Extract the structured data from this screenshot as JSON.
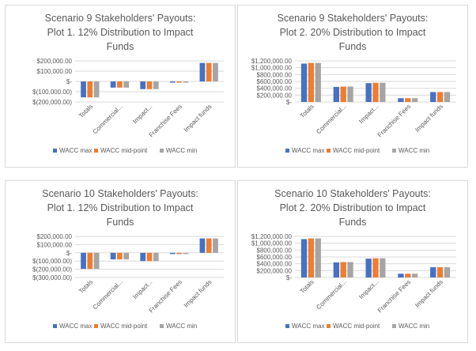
{
  "chart_data": [
    {
      "type": "bar",
      "title": [
        "Scenario 9 Stakeholders' Payouts:",
        "Plot 1. 12% Distribution to Impact",
        "Funds"
      ],
      "categories": [
        "Totals",
        "Commercial...",
        "Impact...",
        "Franchise Fees",
        "Impact funds"
      ],
      "yticks": [
        "$200,000.00",
        "$100,000.00",
        "$-",
        "$(100,000.00)",
        "$(200,000.00)"
      ],
      "ylim": [
        -200000,
        200000
      ],
      "ystep": 100000,
      "legend": "bottom",
      "grid": true,
      "series": [
        {
          "name": "WACC max",
          "color": "#4472c4",
          "values": [
            -155000,
            -60000,
            -75000,
            -12000,
            180000
          ]
        },
        {
          "name": "WACC mid-point",
          "color": "#ed7d31",
          "values": [
            -155000,
            -60000,
            -75000,
            -12000,
            180000
          ]
        },
        {
          "name": "WACC min",
          "color": "#a5a5a5",
          "values": [
            -155000,
            -60000,
            -75000,
            -12000,
            180000
          ]
        }
      ]
    },
    {
      "type": "bar",
      "title": [
        "Scenario 9 Stakeholders' Payouts:",
        "Plot 2. 20% Distribution to Impact",
        "Funds"
      ],
      "categories": [
        "Totals",
        "Commercial...",
        "Impact...",
        "Franchise Fees",
        "Impact funds"
      ],
      "yticks": [
        "$1,200,000.00",
        "$1,000,000.00",
        "$800,000.00",
        "$600,000.00",
        "$400,000.00",
        "$200,000.00",
        "$-"
      ],
      "ylim": [
        0,
        1200000
      ],
      "ystep": 200000,
      "legend": "bottom",
      "grid": true,
      "series": [
        {
          "name": "WACC max",
          "color": "#4472c4",
          "values": [
            1120000,
            440000,
            550000,
            110000,
            290000
          ]
        },
        {
          "name": "WACC mid-point",
          "color": "#ed7d31",
          "values": [
            1140000,
            450000,
            560000,
            110000,
            290000
          ]
        },
        {
          "name": "WACC min",
          "color": "#a5a5a5",
          "values": [
            1140000,
            450000,
            560000,
            110000,
            290000
          ]
        }
      ]
    },
    {
      "type": "bar",
      "title": [
        "Scenario 10 Stakeholders' Payouts:",
        "Plot 1. 12% Distribution to Impact",
        "Funds"
      ],
      "categories": [
        "Totals",
        "Commercial...",
        "Impact...",
        "Franchise Fees",
        "Impact funds"
      ],
      "yticks": [
        "$200,000.00",
        "$100,000.00",
        "$-",
        "$(100,000.00)",
        "$(200,000.00)",
        "$(300,000.00)"
      ],
      "ylim": [
        -300000,
        200000
      ],
      "ystep": 100000,
      "legend": "bottom",
      "grid": true,
      "series": [
        {
          "name": "WACC max",
          "color": "#4472c4",
          "values": [
            -195000,
            -80000,
            -100000,
            -15000,
            175000
          ]
        },
        {
          "name": "WACC mid-point",
          "color": "#ed7d31",
          "values": [
            -195000,
            -80000,
            -100000,
            -15000,
            175000
          ]
        },
        {
          "name": "WACC min",
          "color": "#a5a5a5",
          "values": [
            -195000,
            -80000,
            -100000,
            -15000,
            175000
          ]
        }
      ]
    },
    {
      "type": "bar",
      "title": [
        "Scenario 10 Stakeholders' Payouts:",
        "Plot 2. 20% Distribution to Impact",
        "Funds"
      ],
      "categories": [
        "Totals",
        "Commercial...",
        "Impact...",
        "Franchise Fees",
        "Impact funds"
      ],
      "yticks": [
        "$1,200,000.00",
        "$1,000,000.00",
        "$800,000.00",
        "$600,000.00",
        "$400,000.00",
        "$200,000.00",
        "$-"
      ],
      "ylim": [
        0,
        1200000
      ],
      "ystep": 200000,
      "legend": "bottom",
      "grid": true,
      "series": [
        {
          "name": "WACC max",
          "color": "#4472c4",
          "values": [
            1120000,
            440000,
            550000,
            110000,
            300000
          ]
        },
        {
          "name": "WACC mid-point",
          "color": "#ed7d31",
          "values": [
            1140000,
            450000,
            560000,
            110000,
            300000
          ]
        },
        {
          "name": "WACC min",
          "color": "#a5a5a5",
          "values": [
            1140000,
            450000,
            560000,
            110000,
            300000
          ]
        }
      ]
    }
  ]
}
